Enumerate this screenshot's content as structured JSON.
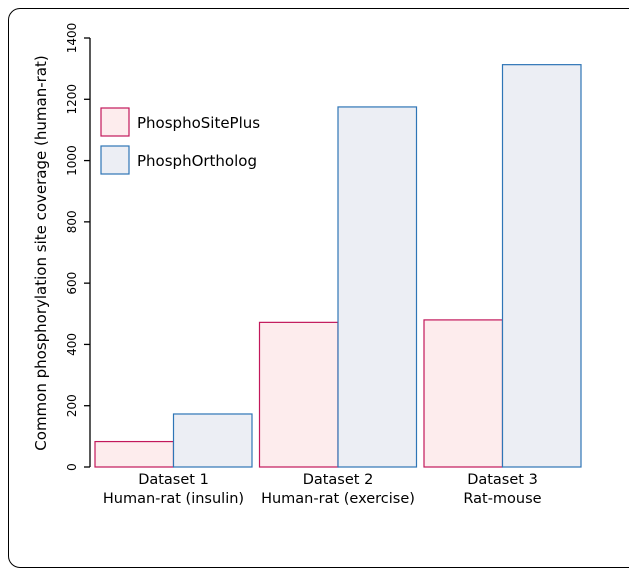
{
  "chart_data": {
    "type": "bar",
    "title": "",
    "xlabel": "",
    "ylabel": "Common phosphorylation site coverage (human-rat)",
    "ylim": [
      0,
      1400
    ],
    "yticks": [
      0,
      200,
      400,
      600,
      800,
      1000,
      1200,
      1400
    ],
    "categories": [
      {
        "line1": "Dataset 1",
        "line2": "Human-rat (insulin)"
      },
      {
        "line1": "Dataset 2",
        "line2": "Human-rat (exercise)"
      },
      {
        "line1": "Dataset 3",
        "line2": "Rat-mouse"
      }
    ],
    "series": [
      {
        "name": "PhosphoSitePlus",
        "values": [
          83,
          472,
          480
        ],
        "fill": "#fdeced",
        "stroke": "#c2185b"
      },
      {
        "name": "PhosphOrtholog",
        "values": [
          173,
          1175,
          1313
        ],
        "fill": "#eceef4",
        "stroke": "#2e75b6"
      }
    ],
    "legend": "top-left",
    "grid": false
  }
}
